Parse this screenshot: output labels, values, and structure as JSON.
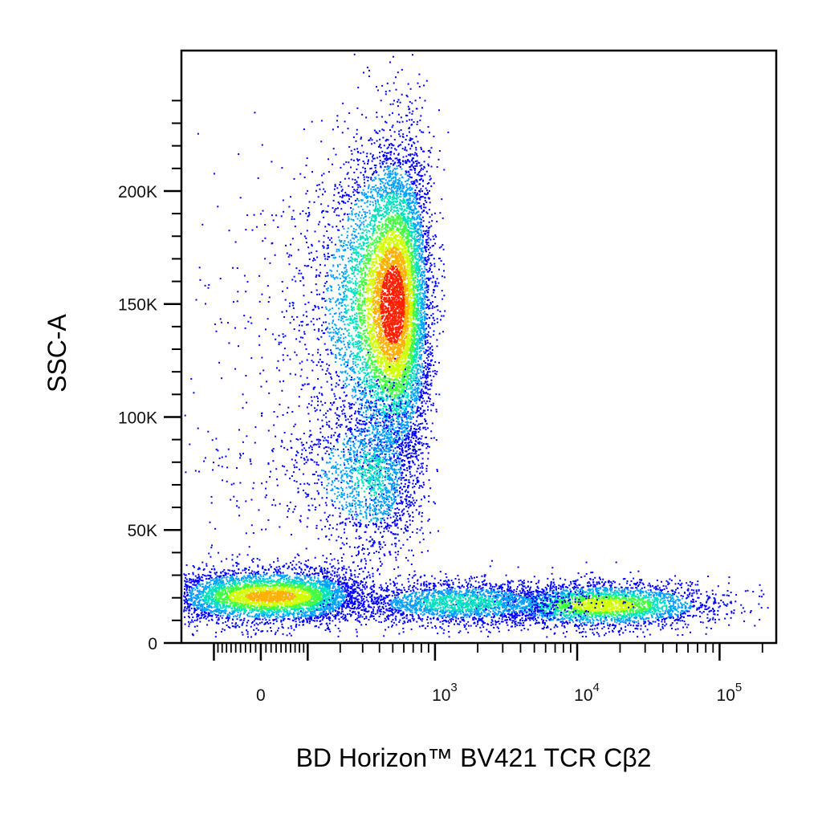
{
  "chart_data": {
    "type": "scatter",
    "style": "pseudocolor density dot plot",
    "xlabel": "BD Horizon™ BV421 TCR Cβ2",
    "ylabel": "SSC-A",
    "x_scale": "biexponential",
    "xlim": [
      -200,
      250000
    ],
    "ylim": [
      0,
      262144
    ],
    "y_ticks": [
      {
        "value": 0,
        "label": "0"
      },
      {
        "value": 50000,
        "label": "50K"
      },
      {
        "value": 100000,
        "label": "100K"
      },
      {
        "value": 150000,
        "label": "150K"
      },
      {
        "value": 200000,
        "label": "200K"
      }
    ],
    "x_ticks": [
      {
        "value": 0,
        "label": "0",
        "sup": ""
      },
      {
        "value": 1000,
        "label": "10",
        "sup": "3"
      },
      {
        "value": 10000,
        "label": "10",
        "sup": "4"
      },
      {
        "value": 100000,
        "label": "10",
        "sup": "5"
      }
    ],
    "density_colors": [
      "#0000ff",
      "#00a0ff",
      "#00e0c0",
      "#40ff40",
      "#d0ff00",
      "#ffb000",
      "#ff2000"
    ],
    "populations": [
      {
        "name": "",
        "x_center": 500,
        "x_spread": 200,
        "y_center": 150000,
        "y_spread": 35000,
        "count": 9000,
        "peak_density": 1.0
      },
      {
        "name": "",
        "x_center": 350,
        "x_spread": 180,
        "y_center": 75000,
        "y_spread": 18000,
        "count": 1800,
        "peak_density": 0.35
      },
      {
        "name": "",
        "x_center": 20,
        "x_spread": 120,
        "y_center": 21000,
        "y_spread": 6000,
        "count": 4500,
        "peak_density": 0.8
      },
      {
        "name": "",
        "x_center": 15000,
        "x_spread": 10000,
        "y_center": 17000,
        "y_spread": 5000,
        "count": 3000,
        "peak_density": 0.7
      },
      {
        "name": "",
        "x_center": 1500,
        "x_spread": 1400,
        "y_center": 18000,
        "y_spread": 5000,
        "count": 2200,
        "peak_density": 0.4
      }
    ],
    "grid": false,
    "legend": "none"
  }
}
